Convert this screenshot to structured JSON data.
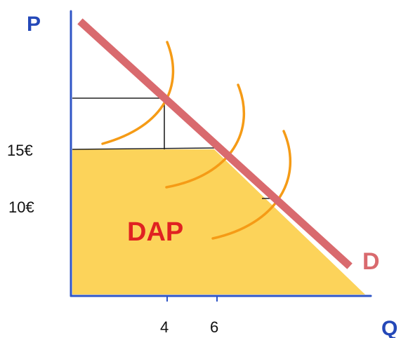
{
  "labels": {
    "p_axis": "P",
    "q_axis": "Q",
    "price_high": "15€",
    "price_low": "10€",
    "qty_4": "4",
    "qty_6": "6",
    "area_label": "DAP",
    "demand_label": "D"
  },
  "colors": {
    "axis": "#2f55c6",
    "axis_text": "#2448b8",
    "demand": "#d96a6e",
    "area_fill": "#fcd35a",
    "area_text": "#e02222",
    "arcs": "#f59b16",
    "grid": "#222222"
  }
}
